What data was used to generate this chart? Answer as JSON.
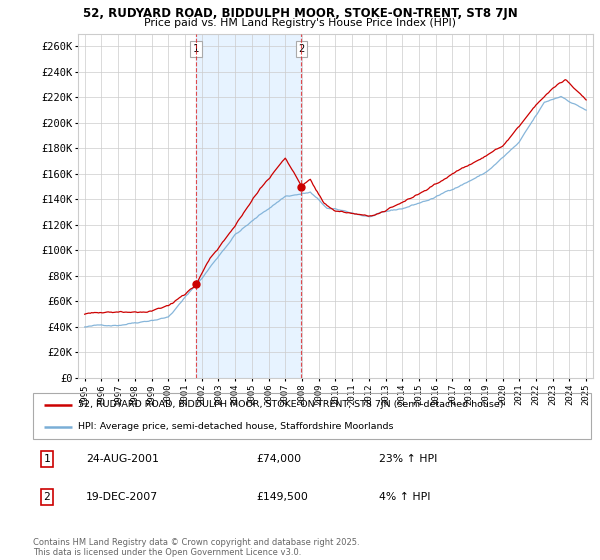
{
  "title1": "52, RUDYARD ROAD, BIDDULPH MOOR, STOKE-ON-TRENT, ST8 7JN",
  "title2": "Price paid vs. HM Land Registry's House Price Index (HPI)",
  "ylabel_ticks": [
    "£0",
    "£20K",
    "£40K",
    "£60K",
    "£80K",
    "£100K",
    "£120K",
    "£140K",
    "£160K",
    "£180K",
    "£200K",
    "£220K",
    "£240K",
    "£260K"
  ],
  "ytick_values": [
    0,
    20000,
    40000,
    60000,
    80000,
    100000,
    120000,
    140000,
    160000,
    180000,
    200000,
    220000,
    240000,
    260000
  ],
  "ylim": [
    0,
    270000
  ],
  "legend_line1": "52, RUDYARD ROAD, BIDDULPH MOOR, STOKE-ON-TRENT, ST8 7JN (semi-detached house)",
  "legend_line2": "HPI: Average price, semi-detached house, Staffordshire Moorlands",
  "sale1_label": "1",
  "sale1_date": "24-AUG-2001",
  "sale1_price": "£74,000",
  "sale1_hpi": "23% ↑ HPI",
  "sale2_label": "2",
  "sale2_date": "19-DEC-2007",
  "sale2_price": "£149,500",
  "sale2_hpi": "4% ↑ HPI",
  "footnote": "Contains HM Land Registry data © Crown copyright and database right 2025.\nThis data is licensed under the Open Government Licence v3.0.",
  "line_color_red": "#cc0000",
  "line_color_blue": "#7aaed6",
  "shade_color": "#ddeeff",
  "bg_color": "#ffffff",
  "grid_color": "#cccccc",
  "vline1_x": 2001.65,
  "vline2_x": 2007.97,
  "sale1_x": 2001.65,
  "sale1_y": 74000,
  "sale2_x": 2007.97,
  "sale2_y": 149500,
  "xlim_left": 1994.6,
  "xlim_right": 2025.4
}
